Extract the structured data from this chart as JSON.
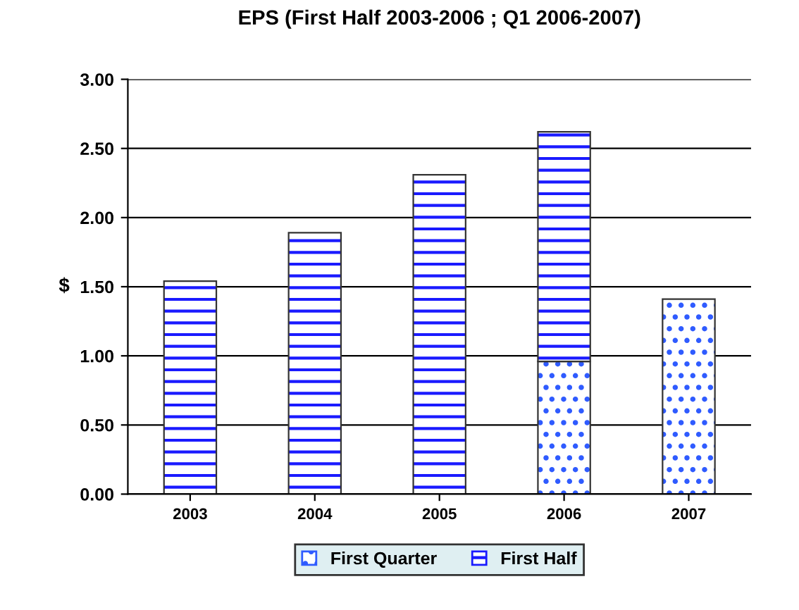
{
  "chart_data": {
    "type": "bar",
    "title": "EPS (First Half 2003-2006 ; Q1 2006-2007)",
    "ylabel": "$",
    "categories": [
      "2003",
      "2004",
      "2005",
      "2006",
      "2007"
    ],
    "stacked": true,
    "series": [
      {
        "name": "First Quarter",
        "color": "#2f5bff",
        "values": [
          null,
          null,
          null,
          0.96,
          1.41
        ]
      },
      {
        "name": "First Half",
        "color": "#1a1aff",
        "values": [
          1.54,
          1.89,
          2.31,
          1.66,
          null
        ]
      }
    ],
    "ylim": [
      0,
      3
    ],
    "yticks": [
      {
        "value": 0,
        "label": "0.00"
      },
      {
        "value": 0.5,
        "label": "0.50"
      },
      {
        "value": 1,
        "label": "1.00"
      },
      {
        "value": 1.5,
        "label": "1.50"
      },
      {
        "value": 2,
        "label": "2.00"
      },
      {
        "value": 2.5,
        "label": "2.50"
      },
      {
        "value": 3,
        "label": "3.00"
      }
    ],
    "grid": "y",
    "legend": "bottom"
  }
}
